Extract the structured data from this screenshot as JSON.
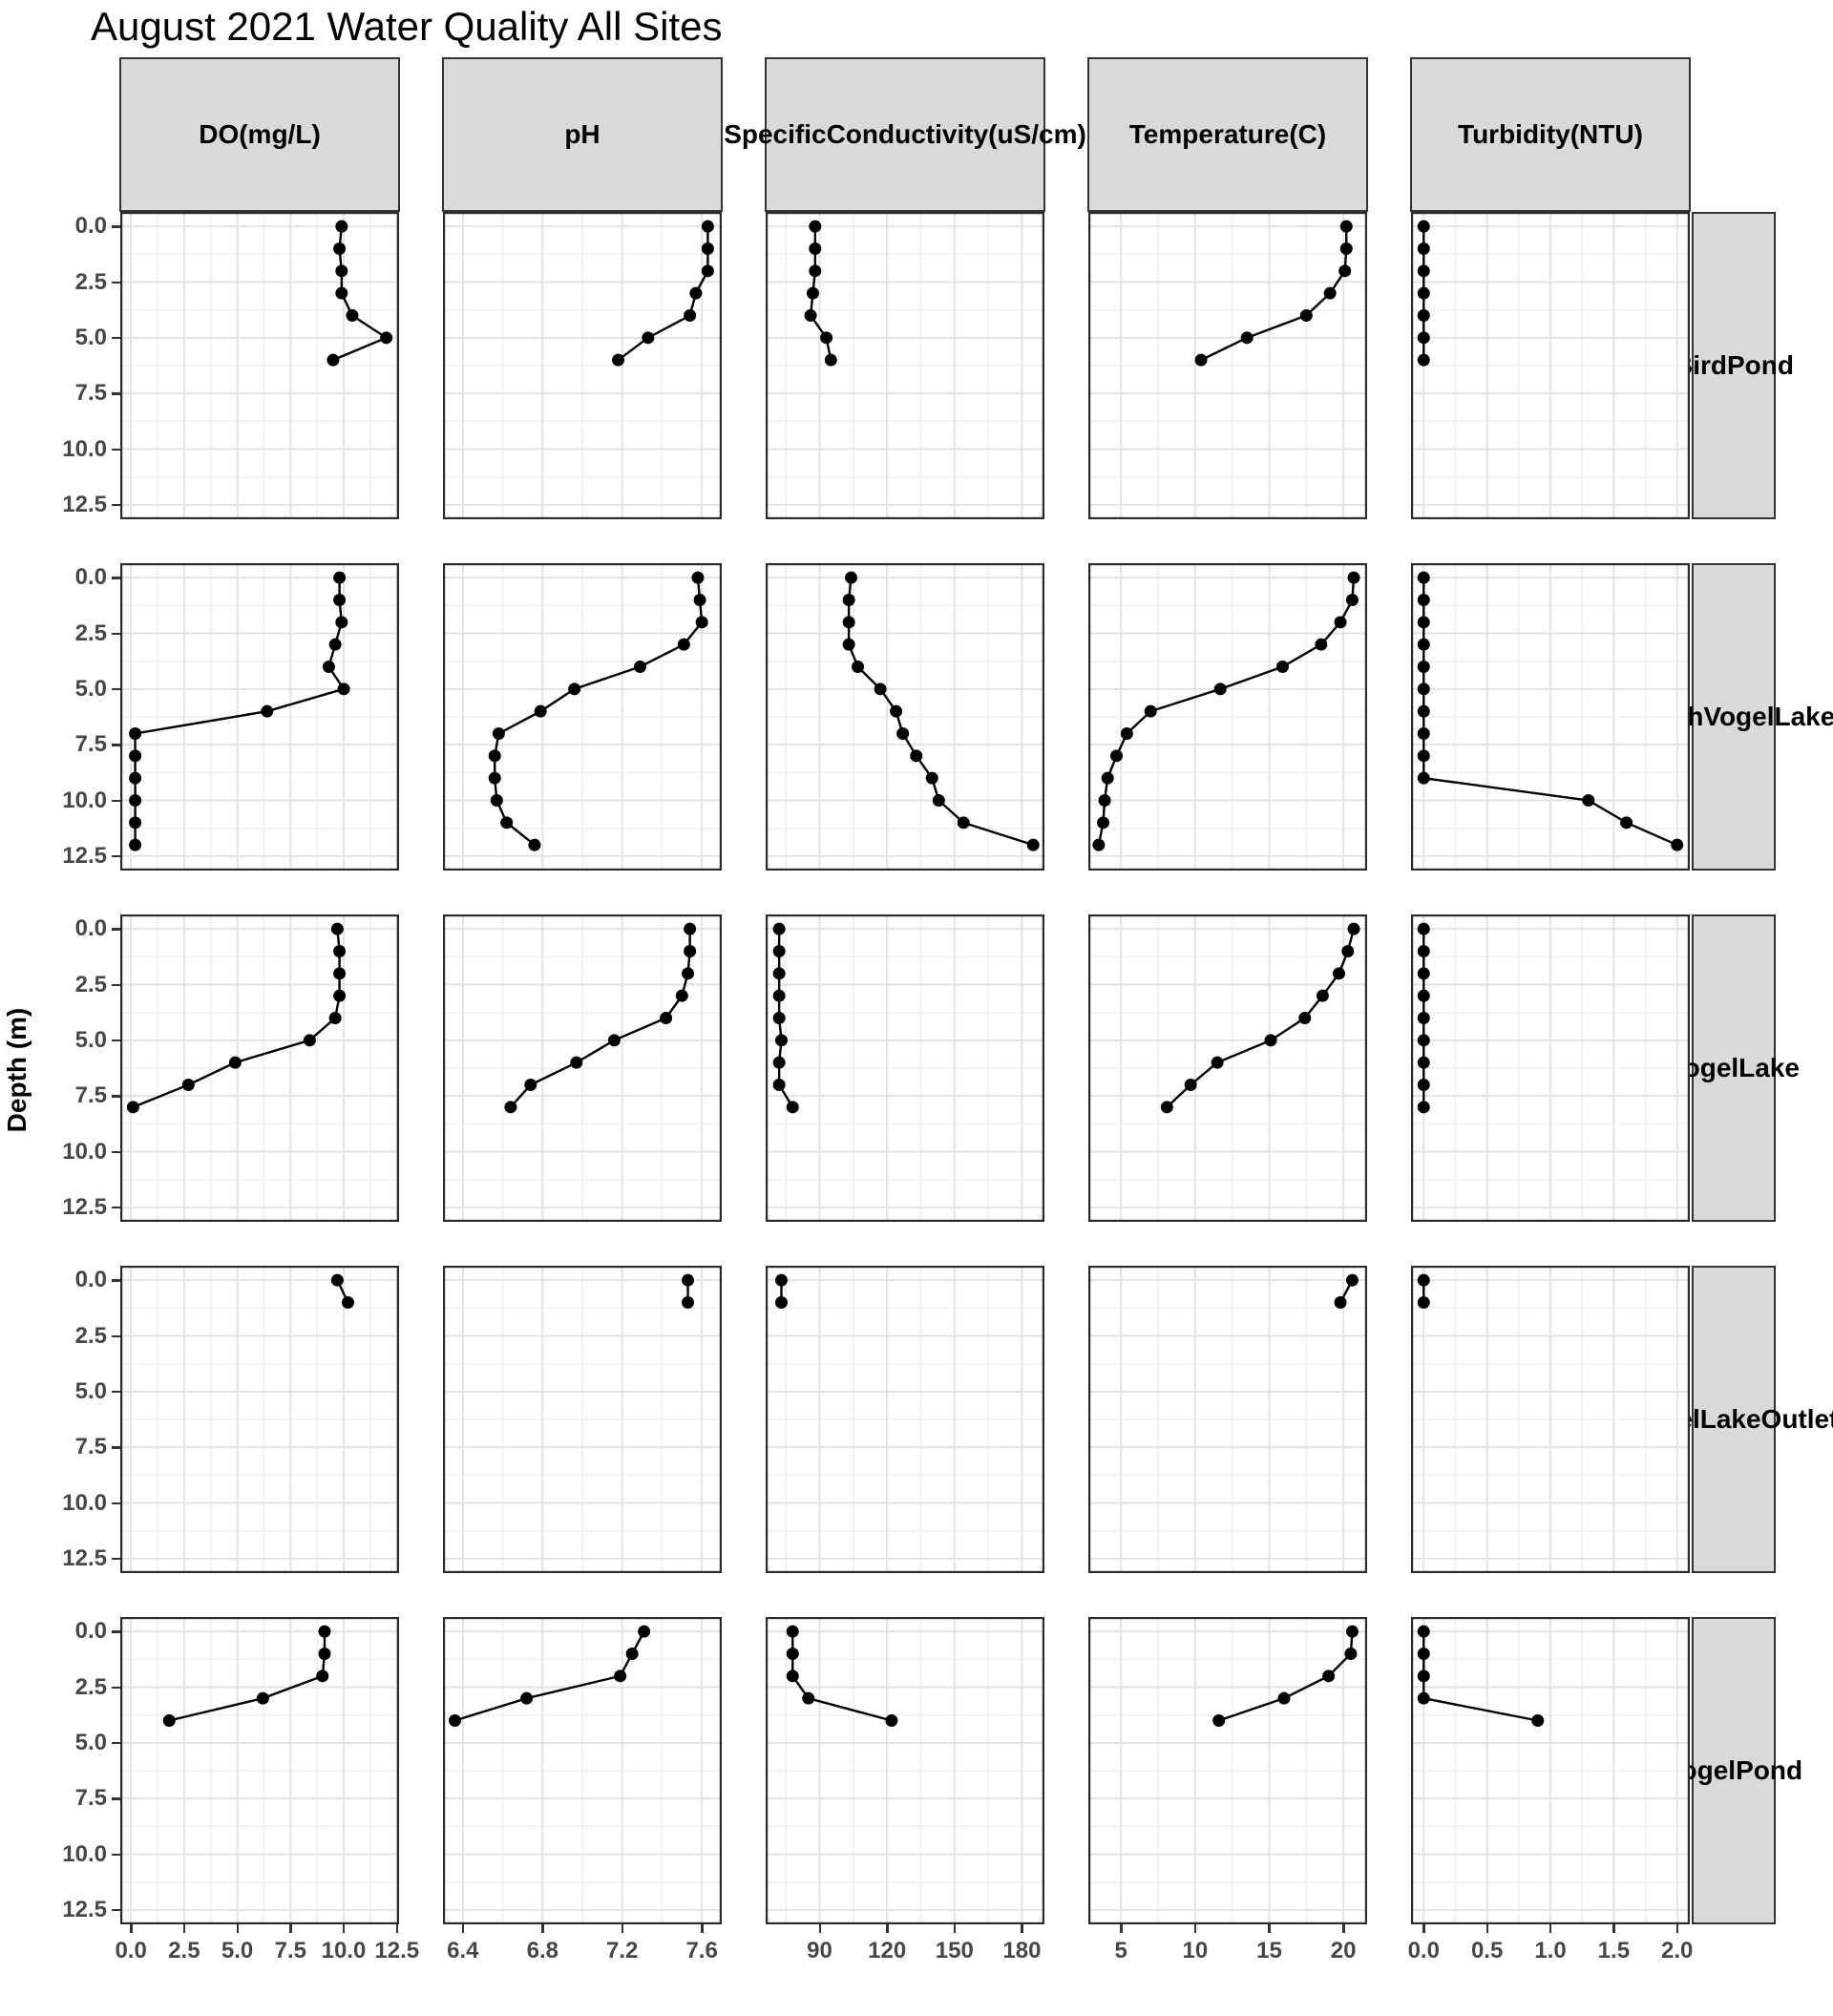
{
  "title": "August 2021 Water Quality All Sites",
  "colors": {
    "strip_bg": "#d9d9d9",
    "panel_border": "#2b2b2b",
    "grid_major": "#e3e3e3",
    "grid_minor": "#f1f1f1",
    "series": "#000000",
    "axis_text": "#474747"
  },
  "chart_data": {
    "type": "line",
    "facet": {
      "rows": "site",
      "cols": "parameter"
    },
    "title": "August 2021 Water Quality All Sites",
    "ylabel": "Depth (m)",
    "y_inverted": true,
    "y_ticks": [
      0.0,
      2.5,
      5.0,
      7.5,
      10.0,
      12.5
    ],
    "y_tick_labels": [
      "0.0",
      "2.5",
      "5.0",
      "7.5",
      "10.0",
      "12.5"
    ],
    "y_range": [
      -0.65,
      13.15
    ],
    "grid": true,
    "legend": "none",
    "columns": [
      {
        "key": "do",
        "label_lines": [
          "DO",
          "(mg/L)"
        ],
        "ticks": [
          0.0,
          2.5,
          5.0,
          7.5,
          10.0,
          12.5
        ],
        "tick_labels": [
          "0.0",
          "2.5",
          "5.0",
          "7.5",
          "10.0",
          "12.5"
        ],
        "range": [
          -0.5,
          12.6
        ]
      },
      {
        "key": "ph",
        "label_lines": [
          "pH"
        ],
        "ticks": [
          6.4,
          6.8,
          7.2,
          7.6
        ],
        "tick_labels": [
          "6.4",
          "6.8",
          "7.2",
          "7.6"
        ],
        "range": [
          6.3,
          7.7
        ]
      },
      {
        "key": "sc",
        "label_lines": [
          "Specific",
          "Conductivity",
          "(uS/cm)"
        ],
        "ticks": [
          90,
          120,
          150,
          180
        ],
        "tick_labels": [
          "90",
          "120",
          "150",
          "180"
        ],
        "range": [
          66,
          190
        ]
      },
      {
        "key": "temp",
        "label_lines": [
          "Temperature",
          "(C)"
        ],
        "ticks": [
          5,
          10,
          15,
          20
        ],
        "tick_labels": [
          "5",
          "10",
          "15",
          "20"
        ],
        "range": [
          2.8,
          21.6
        ]
      },
      {
        "key": "turb",
        "label_lines": [
          "Turbidity",
          "(NTU)"
        ],
        "ticks": [
          0.0,
          0.5,
          1.0,
          1.5,
          2.0
        ],
        "tick_labels": [
          "0.0",
          "0.5",
          "1.0",
          "1.5",
          "2.0"
        ],
        "range": [
          -0.1,
          2.1
        ]
      }
    ],
    "sites": [
      {
        "name": "Bird Pond",
        "strip_lines": [
          "Bird",
          "Pond"
        ],
        "depths": [
          0,
          1,
          2,
          3,
          4,
          5,
          6
        ],
        "do": [
          9.9,
          9.8,
          9.9,
          9.9,
          10.4,
          12.0,
          9.5
        ],
        "ph": [
          7.63,
          7.63,
          7.63,
          7.57,
          7.54,
          7.33,
          7.18
        ],
        "sc": [
          88,
          88,
          88,
          87,
          86,
          93,
          95
        ],
        "temp": [
          20.2,
          20.2,
          20.1,
          19.1,
          17.5,
          13.5,
          10.4
        ],
        "turb": [
          0.0,
          0.0,
          0.0,
          0.0,
          0.0,
          0.0,
          0.0
        ]
      },
      {
        "name": "North Vogel Lake",
        "strip_lines": [
          "North",
          "Vogel",
          "Lake"
        ],
        "depths": [
          0,
          1,
          2,
          3,
          4,
          5,
          6,
          7,
          8,
          9,
          10,
          11,
          12
        ],
        "do": [
          9.8,
          9.8,
          9.9,
          9.6,
          9.3,
          10.0,
          6.4,
          0.2,
          0.2,
          0.2,
          0.2,
          0.2,
          0.2
        ],
        "ph": [
          7.58,
          7.59,
          7.6,
          7.51,
          7.29,
          6.96,
          6.79,
          6.58,
          6.56,
          6.56,
          6.57,
          6.62,
          6.76
        ],
        "sc": [
          104,
          103,
          103,
          103,
          107,
          117,
          124,
          127,
          133,
          140,
          143,
          154,
          185
        ],
        "temp": [
          20.7,
          20.6,
          19.8,
          18.5,
          15.9,
          11.7,
          7.0,
          5.4,
          4.7,
          4.1,
          3.9,
          3.8,
          3.5
        ],
        "turb": [
          0.0,
          0.0,
          0.0,
          0.0,
          0.0,
          0.0,
          0.0,
          0.0,
          0.0,
          0.0,
          1.3,
          1.6,
          2.0
        ]
      },
      {
        "name": "Vogel Lake",
        "strip_lines": [
          "Vogel",
          "Lake"
        ],
        "depths": [
          0,
          1,
          2,
          3,
          4,
          5,
          6,
          7,
          8
        ],
        "do": [
          9.7,
          9.8,
          9.8,
          9.8,
          9.6,
          8.4,
          4.9,
          2.7,
          0.1
        ],
        "ph": [
          7.54,
          7.54,
          7.53,
          7.5,
          7.42,
          7.16,
          6.97,
          6.74,
          6.64
        ],
        "sc": [
          72,
          72,
          72,
          72,
          72,
          73,
          72,
          72,
          78
        ],
        "temp": [
          20.7,
          20.3,
          19.7,
          18.6,
          17.4,
          15.1,
          11.5,
          9.7,
          8.1
        ],
        "turb": [
          0.0,
          0.0,
          0.0,
          0.0,
          0.0,
          0.0,
          0.0,
          0.0,
          0.0
        ]
      },
      {
        "name": "Vogel Lake Outlet",
        "strip_lines": [
          "Vogel",
          "Lake",
          "Outlet"
        ],
        "depths": [
          0,
          1
        ],
        "do": [
          9.7,
          10.2
        ],
        "ph": [
          7.53,
          7.53
        ],
        "sc": [
          73,
          73
        ],
        "temp": [
          20.6,
          19.8
        ],
        "turb": [
          0.0,
          0.0
        ]
      },
      {
        "name": "Vogel Pond",
        "strip_lines": [
          "Vogel",
          "Pond"
        ],
        "depths": [
          0,
          1,
          2,
          3,
          4
        ],
        "do": [
          9.1,
          9.1,
          9.0,
          6.2,
          1.8
        ],
        "ph": [
          7.31,
          7.25,
          7.19,
          6.72,
          6.36
        ],
        "sc": [
          78,
          78,
          78,
          85,
          122
        ],
        "temp": [
          20.6,
          20.5,
          19.0,
          16.0,
          11.6
        ],
        "turb": [
          0.0,
          0.0,
          0.0,
          0.0,
          0.9
        ]
      }
    ]
  }
}
